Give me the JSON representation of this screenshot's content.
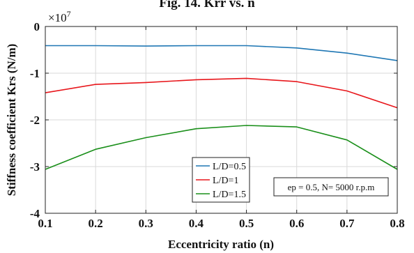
{
  "chart_data": {
    "type": "line",
    "title": "Fig. 14. Krr vs. n",
    "xlabel": "Eccentricity ratio (n)",
    "ylabel": "Stiffness coefficient Krs (N/m)",
    "exponent_base": "×10",
    "exponent_power": "7",
    "xlim": [
      0.1,
      0.8
    ],
    "ylim": [
      -4,
      0
    ],
    "xticks": [
      "0.1",
      "0.2",
      "0.3",
      "0.4",
      "0.5",
      "0.6",
      "0.7",
      "0.8"
    ],
    "yticks": [
      "0",
      "-1",
      "-2",
      "-3",
      "-4"
    ],
    "x": [
      0.1,
      0.2,
      0.3,
      0.4,
      0.5,
      0.6,
      0.7,
      0.8
    ],
    "grid": true,
    "legend_position": "lower-center",
    "series": [
      {
        "name": "L/D=0.5",
        "color": "#1f77b4",
        "values": [
          -0.41,
          -0.41,
          -0.42,
          -0.41,
          -0.41,
          -0.46,
          -0.57,
          -0.73
        ]
      },
      {
        "name": "L/D=1",
        "color": "#e8161b",
        "values": [
          -1.42,
          -1.24,
          -1.2,
          -1.14,
          -1.11,
          -1.18,
          -1.38,
          -1.74
        ]
      },
      {
        "name": "L/D=1.5",
        "color": "#1a8f1a",
        "values": [
          -3.06,
          -2.63,
          -2.38,
          -2.19,
          -2.12,
          -2.15,
          -2.43,
          -3.06
        ]
      }
    ],
    "annotation": "ep = 0.5, N= 5000 r.p.m"
  }
}
